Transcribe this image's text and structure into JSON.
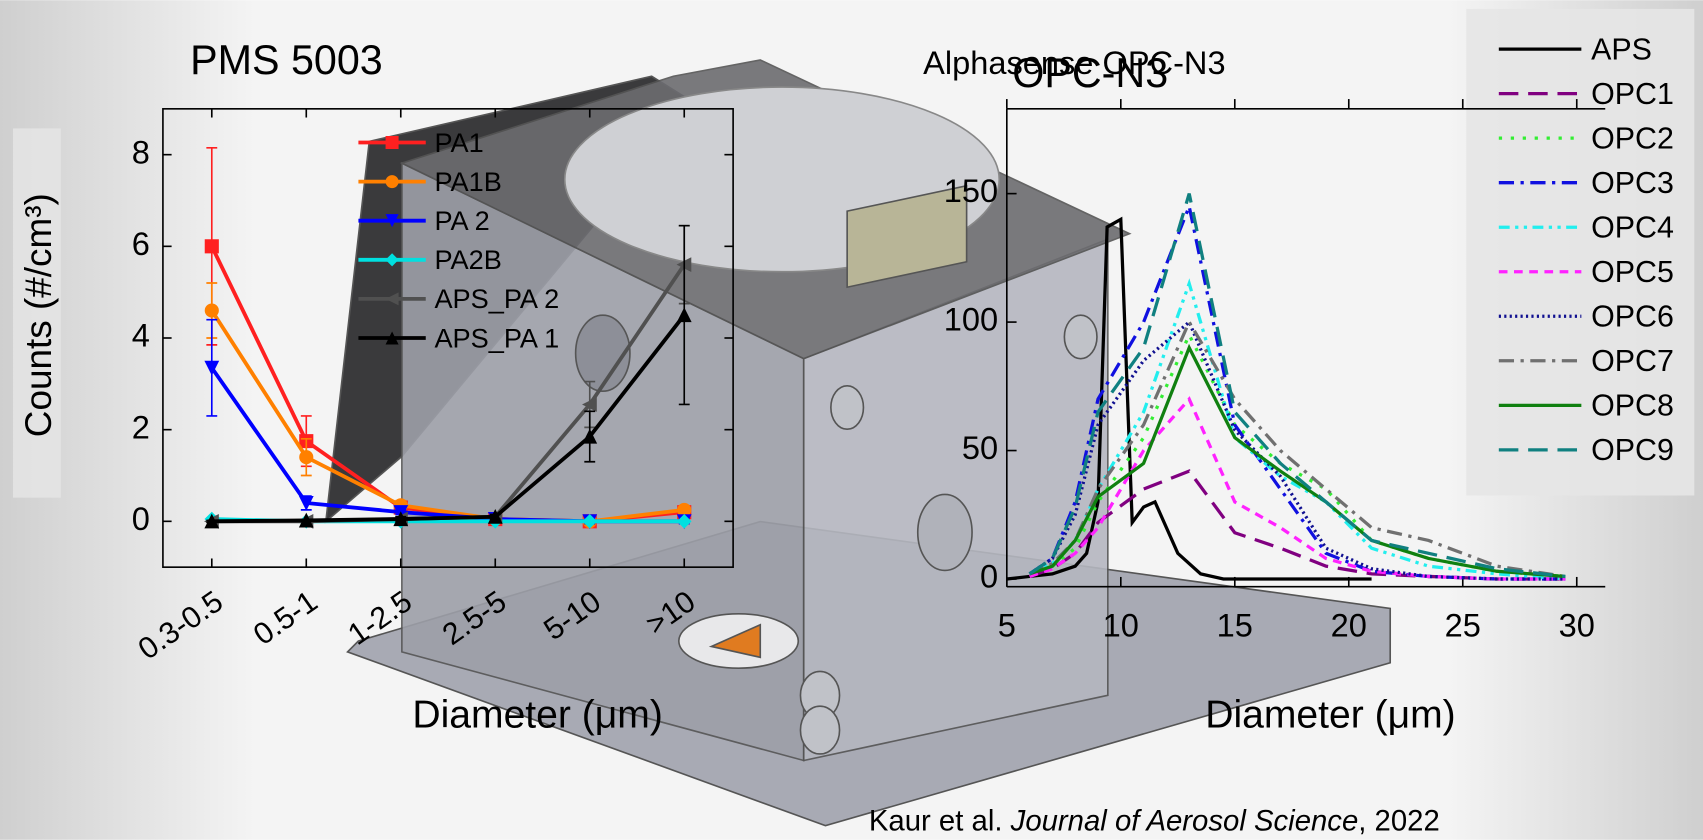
{
  "chart_data": [
    {
      "type": "line",
      "title": "PMS 5003",
      "x_label": "Diameter (μm)",
      "y_label": "Counts (#/cm³)",
      "categories": [
        "0.3-0.5",
        "0.5-1",
        "1-2.5",
        "2.5-5",
        "5-10",
        ">10"
      ],
      "ylim": [
        -1,
        9
      ],
      "yticks": [
        0,
        2,
        4,
        6,
        8
      ],
      "series": [
        {
          "name": "PA1",
          "color": "#ff2020",
          "marker": "square",
          "values": [
            6,
            1.75,
            0.3,
            0.05,
            0,
            0.2
          ],
          "errors": [
            2.15,
            0.55,
            0.1,
            0.05,
            0.05,
            0.05
          ]
        },
        {
          "name": "PA1B",
          "color": "#ff8000",
          "marker": "circle",
          "values": [
            4.6,
            1.4,
            0.35,
            0.05,
            0,
            0.25
          ],
          "errors": [
            0.6,
            0.4,
            0.1,
            0.05,
            0.05,
            0.05
          ]
        },
        {
          "name": "PA 2",
          "color": "#0000ff",
          "marker": "triangle-down",
          "values": [
            3.35,
            0.4,
            0.2,
            0.05,
            0,
            0
          ],
          "errors": [
            1.05,
            0.15,
            0.05,
            0.05,
            0.05,
            0.05
          ]
        },
        {
          "name": "PA2B",
          "color": "#00e0e0",
          "marker": "diamond",
          "values": [
            0.05,
            0,
            0,
            0,
            0,
            0
          ],
          "errors": [
            0.02,
            0.02,
            0.02,
            0.02,
            0.02,
            0.02
          ]
        },
        {
          "name": "APS_PA 2",
          "color": "#505050",
          "marker": "triangle-left",
          "values": [
            0,
            0,
            0.05,
            0.1,
            2.55,
            5.6
          ],
          "errors": [
            0.02,
            0.02,
            0.05,
            0.05,
            0.5,
            0.85
          ]
        },
        {
          "name": "APS_PA 1",
          "color": "#000000",
          "marker": "triangle-up",
          "values": [
            0,
            0.02,
            0.05,
            0.1,
            1.85,
            4.5
          ],
          "errors": [
            0.02,
            0.02,
            0.05,
            0.05,
            0.55,
            1.95
          ]
        }
      ]
    },
    {
      "type": "line",
      "title": "Alphasense OPC-N3",
      "subtitle": "OPC-N3",
      "x_label": "Diameter (μm)",
      "xlim": [
        5,
        31.25
      ],
      "xticks": [
        5,
        10,
        15,
        20,
        25,
        30
      ],
      "ylim": [
        -3,
        183
      ],
      "yticks": [
        0,
        50,
        100,
        150
      ],
      "series": [
        {
          "name": "APS",
          "color": "#000000",
          "style": "solid",
          "x": [
            5,
            6,
            7,
            8,
            8.5,
            9,
            9.4,
            10,
            10.5,
            11,
            11.5,
            12.5,
            13.5,
            14.5,
            21
          ],
          "values": [
            0,
            1,
            2,
            5,
            10,
            30,
            137,
            140,
            22,
            28,
            30,
            10,
            2,
            0,
            0
          ]
        },
        {
          "name": "OPC1",
          "color": "#800080",
          "style": "dash",
          "x": [
            6,
            7,
            8,
            9,
            11,
            13,
            15,
            17,
            19,
            21,
            23.5,
            26.5,
            29.5
          ],
          "values": [
            1,
            4,
            10,
            22,
            35,
            42,
            18,
            12,
            5,
            2,
            1,
            0,
            0
          ]
        },
        {
          "name": "OPC2",
          "color": "#33ee33",
          "style": "dot",
          "x": [
            6,
            7,
            8,
            9,
            11,
            13,
            15,
            17,
            19,
            21,
            23.5,
            26.5,
            29.5
          ],
          "values": [
            2,
            5,
            12,
            30,
            55,
            95,
            60,
            45,
            35,
            15,
            8,
            3,
            1
          ]
        },
        {
          "name": "OPC3",
          "color": "#1010e0",
          "style": "dashdot",
          "x": [
            6,
            7,
            8,
            9,
            11,
            13,
            15,
            17,
            19,
            21,
            23.5,
            26.5,
            29.5
          ],
          "values": [
            2,
            8,
            30,
            70,
            100,
            145,
            60,
            35,
            10,
            3,
            1,
            0,
            0
          ]
        },
        {
          "name": "OPC4",
          "color": "#22eeee",
          "style": "dashdotdot",
          "x": [
            6,
            7,
            8,
            9,
            11,
            13,
            15,
            17,
            19,
            21,
            23.5,
            26.5,
            29.5
          ],
          "values": [
            2,
            6,
            15,
            35,
            65,
            115,
            55,
            40,
            30,
            12,
            5,
            2,
            0
          ]
        },
        {
          "name": "OPC5",
          "color": "#ff22ff",
          "style": "shortdash",
          "x": [
            6,
            7,
            8,
            9,
            11,
            13,
            15,
            17,
            19,
            21,
            23.5,
            26.5,
            29.5
          ],
          "values": [
            1,
            4,
            10,
            20,
            50,
            70,
            30,
            20,
            8,
            3,
            1,
            0,
            0
          ]
        },
        {
          "name": "OPC6",
          "color": "#101090",
          "style": "shortdot",
          "x": [
            6,
            7,
            8,
            9,
            11,
            13,
            15,
            17,
            19,
            21,
            23.5,
            26.5,
            29.5
          ],
          "values": [
            2,
            8,
            25,
            60,
            85,
            100,
            58,
            40,
            12,
            4,
            1,
            0,
            0
          ]
        },
        {
          "name": "OPC7",
          "color": "#707070",
          "style": "dashdot",
          "x": [
            6,
            7,
            8,
            9,
            11,
            13,
            15,
            17,
            19,
            21,
            23.5,
            26.5,
            29.5
          ],
          "values": [
            2,
            6,
            15,
            35,
            60,
            100,
            70,
            50,
            35,
            20,
            15,
            5,
            1
          ]
        },
        {
          "name": "OPC8",
          "color": "#108010",
          "style": "solid",
          "x": [
            6,
            7,
            8,
            9,
            11,
            13,
            15,
            17,
            19,
            21,
            23.5,
            26.5,
            29.5
          ],
          "values": [
            2,
            5,
            15,
            32,
            45,
            90,
            55,
            42,
            30,
            15,
            8,
            3,
            1
          ]
        },
        {
          "name": "OPC9",
          "color": "#108080",
          "style": "dash",
          "x": [
            6,
            7,
            8,
            9,
            11,
            13,
            15,
            17,
            19,
            21,
            23.5,
            26.5,
            29.5
          ],
          "values": [
            2,
            8,
            28,
            65,
            90,
            150,
            65,
            45,
            30,
            15,
            10,
            4,
            1
          ]
        }
      ]
    }
  ],
  "citation": {
    "authors": "Kaur et al.",
    "journal": "Journal of Aerosol Science",
    "year": ", 2022"
  }
}
